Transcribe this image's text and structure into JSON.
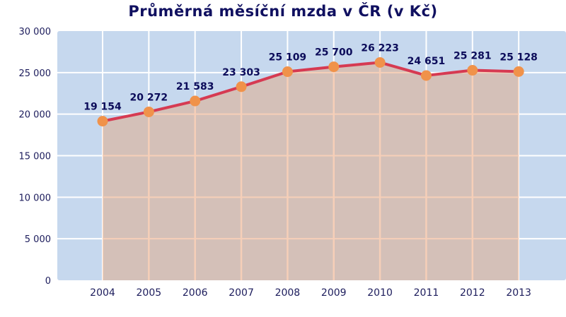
{
  "title": "Průměrná měsíční mzda v ČR (v Kč)",
  "chart_data": {
    "type": "area",
    "title": "Průměrná měsíční mzda v ČR (v Kč)",
    "xlabel": "",
    "ylabel": "",
    "categories": [
      "2004",
      "2005",
      "2006",
      "2007",
      "2008",
      "2009",
      "2010",
      "2011",
      "2012",
      "2013"
    ],
    "values": [
      19154,
      20272,
      21583,
      23303,
      25109,
      25700,
      26223,
      24651,
      25281,
      25128
    ],
    "data_labels": [
      "19 154",
      "20 272",
      "21 583",
      "23 303",
      "25 109",
      "25 700",
      "26 223",
      "24 651",
      "25 281",
      "25 128"
    ],
    "ylim": [
      0,
      30000
    ],
    "yticks": [
      0,
      5000,
      10000,
      15000,
      20000,
      25000,
      30000
    ],
    "ytick_labels": [
      "0",
      "5 000",
      "10 000",
      "15 000",
      "20 000",
      "25 000",
      "30 000"
    ],
    "grid": true,
    "legend": null
  },
  "colors": {
    "plot_background": "#c6d8ee",
    "area_fill": "#d4c0b8",
    "line": "#d63a52",
    "marker": "#f0924a",
    "grid": "#ffffff",
    "area_grid": "#f6cfb8",
    "text": "#1c1c5c",
    "title": "#101060"
  }
}
